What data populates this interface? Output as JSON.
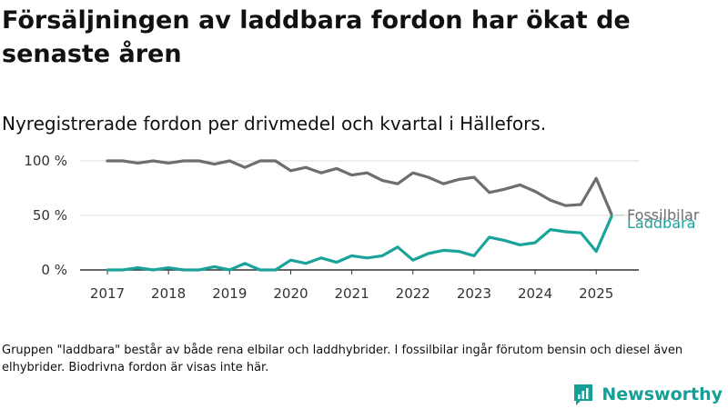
{
  "header": {
    "title": "Försäljningen av laddbara fordon har ökat de senaste åren",
    "subtitle": "Nyregistrerade fordon per drivmedel och kvartal i Hällefors."
  },
  "footnote": "Gruppen \"laddbara\" består av både rena elbilar och laddhybrider. I fossilbilar ingår förutom bensin och diesel även elhybrider. Biodrivna fordon är visas inte här.",
  "brand": {
    "name": "Newsworthy",
    "icon": "newsworthy-logo-icon"
  },
  "colors": {
    "fossil": "#6d6d72",
    "laddbara": "#1aa39a",
    "grid": "#dddddd",
    "axis": "#333333"
  },
  "chart_data": {
    "type": "line",
    "x_start": "2017 Q1",
    "x_ticks": [
      "2017",
      "2018",
      "2019",
      "2020",
      "2021",
      "2022",
      "2023",
      "2024",
      "2025"
    ],
    "y_ticks": [
      "0 %",
      "50 %",
      "100 %"
    ],
    "ylim": [
      0,
      100
    ],
    "grid": true,
    "series": [
      {
        "name": "Fossilbilar",
        "values": [
          100,
          100,
          98,
          100,
          98,
          100,
          100,
          97,
          100,
          94,
          100,
          100,
          91,
          94,
          89,
          93,
          87,
          89,
          82,
          79,
          89,
          85,
          79,
          83,
          85,
          71,
          74,
          78,
          72,
          64,
          59,
          60,
          84,
          51
        ]
      },
      {
        "name": "Laddbara",
        "values": [
          0,
          0,
          2,
          0,
          2,
          0,
          0,
          3,
          0,
          6,
          0,
          0,
          9,
          6,
          11,
          7,
          13,
          11,
          13,
          21,
          9,
          15,
          18,
          17,
          13,
          30,
          27,
          23,
          25,
          37,
          35,
          34,
          17,
          49
        ]
      }
    ]
  }
}
